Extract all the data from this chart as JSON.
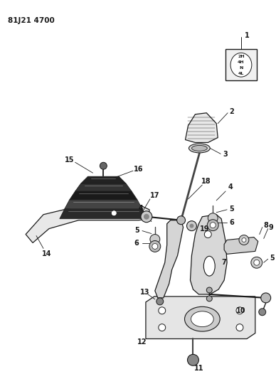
{
  "title": "81J21 4700",
  "bg_color": "#ffffff",
  "lc": "#1a1a1a",
  "figsize": [
    3.88,
    5.33
  ],
  "dpi": 100,
  "shift_labels": [
    "2H",
    "4H",
    "N",
    "4L"
  ]
}
